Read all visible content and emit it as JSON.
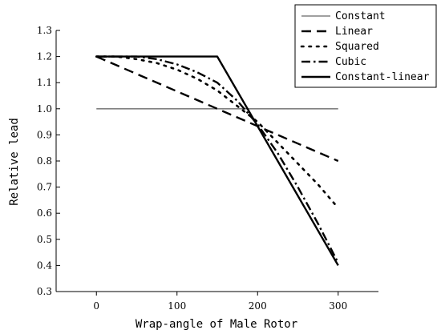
{
  "chart_data": {
    "type": "line",
    "xlabel": "Wrap-angle of Male Rotor",
    "ylabel": "Relative lead",
    "xlim": [
      -50,
      350
    ],
    "ylim": [
      0.3,
      1.3
    ],
    "xticks": [
      0,
      100,
      200,
      300
    ],
    "yticks": [
      0.3,
      0.4,
      0.5,
      0.6,
      0.7,
      0.8,
      0.9,
      1.0,
      1.1,
      1.2,
      1.3
    ],
    "xtick_labels": [
      "0",
      "100",
      "200",
      "300"
    ],
    "ytick_labels": [
      "0.3",
      "0.4",
      "0.5",
      "0.6",
      "0.7",
      "0.8",
      "0.9",
      "1.0",
      "1.1",
      "1.2",
      "1.3"
    ],
    "legend_position": "top-right",
    "grid": false,
    "series": [
      {
        "name": "Constant",
        "color": "#808080",
        "dash": "solid",
        "x": [
          0,
          300
        ],
        "y": [
          1.0,
          1.0
        ]
      },
      {
        "name": "Linear",
        "color": "#000000",
        "dash": "dashed",
        "x": [
          0,
          300
        ],
        "y": [
          1.2,
          0.8
        ]
      },
      {
        "name": "Squared",
        "color": "#000000",
        "dash": "dotted",
        "x": [
          0,
          25,
          50,
          75,
          100,
          125,
          150,
          175,
          200,
          225,
          250,
          275,
          300
        ],
        "y": [
          1.2,
          1.2,
          1.19,
          1.175,
          1.15,
          1.115,
          1.07,
          1.01,
          0.95,
          0.87,
          0.79,
          0.71,
          0.62
        ]
      },
      {
        "name": "Cubic",
        "color": "#000000",
        "dash": "dashdot",
        "x": [
          0,
          25,
          50,
          75,
          100,
          125,
          150,
          175,
          200,
          225,
          250,
          275,
          300
        ],
        "y": [
          1.2,
          1.2,
          1.2,
          1.19,
          1.17,
          1.14,
          1.1,
          1.03,
          0.94,
          0.83,
          0.7,
          0.56,
          0.41
        ]
      },
      {
        "name": "Constant-linear",
        "color": "#000000",
        "dash": "solid-thick",
        "x": [
          0,
          150,
          300
        ],
        "y": [
          1.2,
          1.2,
          0.4
        ]
      }
    ]
  }
}
